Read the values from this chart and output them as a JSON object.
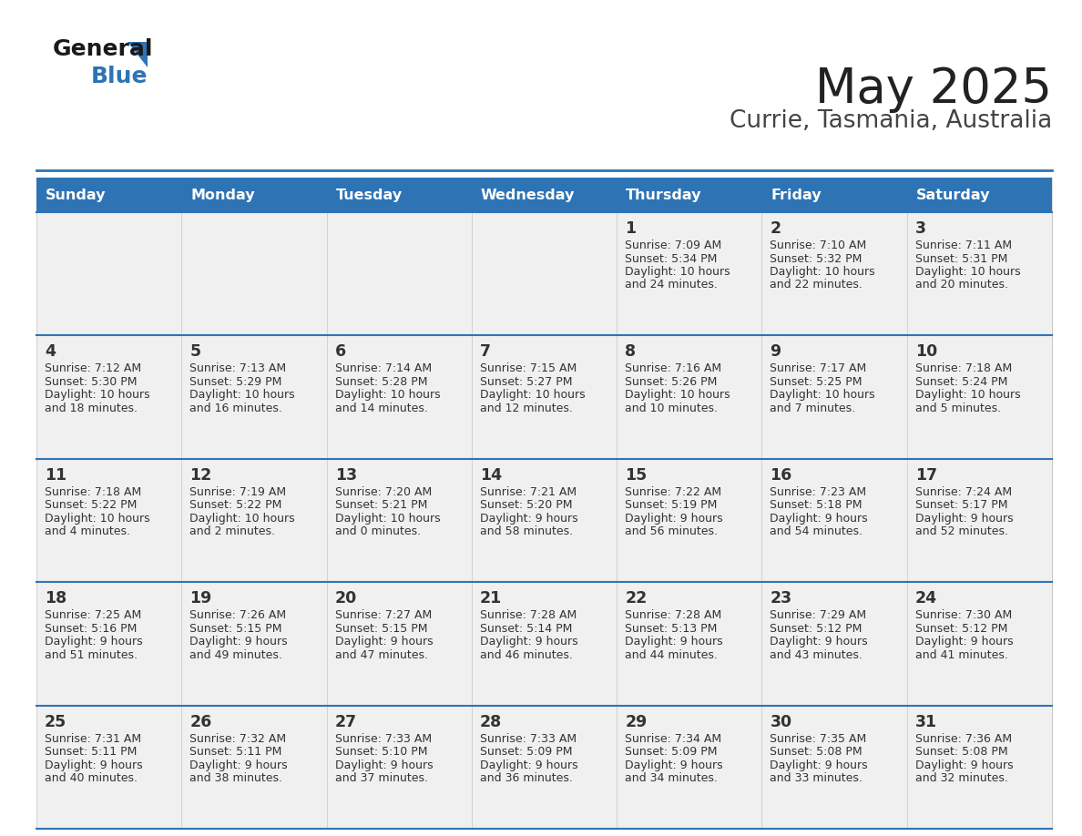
{
  "title": "May 2025",
  "subtitle": "Currie, Tasmania, Australia",
  "days_of_week": [
    "Sunday",
    "Monday",
    "Tuesday",
    "Wednesday",
    "Thursday",
    "Friday",
    "Saturday"
  ],
  "header_bg": "#2e74b5",
  "header_text": "#ffffff",
  "cell_bg_light": "#f0f0f0",
  "separator_color": "#2e74b5",
  "text_color": "#333333",
  "calendar_data": [
    [
      null,
      null,
      null,
      null,
      {
        "day": 1,
        "sunrise": "7:09 AM",
        "sunset": "5:34 PM",
        "daylight_h": "10 hours",
        "daylight_m": "and 24 minutes."
      },
      {
        "day": 2,
        "sunrise": "7:10 AM",
        "sunset": "5:32 PM",
        "daylight_h": "10 hours",
        "daylight_m": "and 22 minutes."
      },
      {
        "day": 3,
        "sunrise": "7:11 AM",
        "sunset": "5:31 PM",
        "daylight_h": "10 hours",
        "daylight_m": "and 20 minutes."
      }
    ],
    [
      {
        "day": 4,
        "sunrise": "7:12 AM",
        "sunset": "5:30 PM",
        "daylight_h": "10 hours",
        "daylight_m": "and 18 minutes."
      },
      {
        "day": 5,
        "sunrise": "7:13 AM",
        "sunset": "5:29 PM",
        "daylight_h": "10 hours",
        "daylight_m": "and 16 minutes."
      },
      {
        "day": 6,
        "sunrise": "7:14 AM",
        "sunset": "5:28 PM",
        "daylight_h": "10 hours",
        "daylight_m": "and 14 minutes."
      },
      {
        "day": 7,
        "sunrise": "7:15 AM",
        "sunset": "5:27 PM",
        "daylight_h": "10 hours",
        "daylight_m": "and 12 minutes."
      },
      {
        "day": 8,
        "sunrise": "7:16 AM",
        "sunset": "5:26 PM",
        "daylight_h": "10 hours",
        "daylight_m": "and 10 minutes."
      },
      {
        "day": 9,
        "sunrise": "7:17 AM",
        "sunset": "5:25 PM",
        "daylight_h": "10 hours",
        "daylight_m": "and 7 minutes."
      },
      {
        "day": 10,
        "sunrise": "7:18 AM",
        "sunset": "5:24 PM",
        "daylight_h": "10 hours",
        "daylight_m": "and 5 minutes."
      }
    ],
    [
      {
        "day": 11,
        "sunrise": "7:18 AM",
        "sunset": "5:22 PM",
        "daylight_h": "10 hours",
        "daylight_m": "and 4 minutes."
      },
      {
        "day": 12,
        "sunrise": "7:19 AM",
        "sunset": "5:22 PM",
        "daylight_h": "10 hours",
        "daylight_m": "and 2 minutes."
      },
      {
        "day": 13,
        "sunrise": "7:20 AM",
        "sunset": "5:21 PM",
        "daylight_h": "10 hours",
        "daylight_m": "and 0 minutes."
      },
      {
        "day": 14,
        "sunrise": "7:21 AM",
        "sunset": "5:20 PM",
        "daylight_h": "9 hours",
        "daylight_m": "and 58 minutes."
      },
      {
        "day": 15,
        "sunrise": "7:22 AM",
        "sunset": "5:19 PM",
        "daylight_h": "9 hours",
        "daylight_m": "and 56 minutes."
      },
      {
        "day": 16,
        "sunrise": "7:23 AM",
        "sunset": "5:18 PM",
        "daylight_h": "9 hours",
        "daylight_m": "and 54 minutes."
      },
      {
        "day": 17,
        "sunrise": "7:24 AM",
        "sunset": "5:17 PM",
        "daylight_h": "9 hours",
        "daylight_m": "and 52 minutes."
      }
    ],
    [
      {
        "day": 18,
        "sunrise": "7:25 AM",
        "sunset": "5:16 PM",
        "daylight_h": "9 hours",
        "daylight_m": "and 51 minutes."
      },
      {
        "day": 19,
        "sunrise": "7:26 AM",
        "sunset": "5:15 PM",
        "daylight_h": "9 hours",
        "daylight_m": "and 49 minutes."
      },
      {
        "day": 20,
        "sunrise": "7:27 AM",
        "sunset": "5:15 PM",
        "daylight_h": "9 hours",
        "daylight_m": "and 47 minutes."
      },
      {
        "day": 21,
        "sunrise": "7:28 AM",
        "sunset": "5:14 PM",
        "daylight_h": "9 hours",
        "daylight_m": "and 46 minutes."
      },
      {
        "day": 22,
        "sunrise": "7:28 AM",
        "sunset": "5:13 PM",
        "daylight_h": "9 hours",
        "daylight_m": "and 44 minutes."
      },
      {
        "day": 23,
        "sunrise": "7:29 AM",
        "sunset": "5:12 PM",
        "daylight_h": "9 hours",
        "daylight_m": "and 43 minutes."
      },
      {
        "day": 24,
        "sunrise": "7:30 AM",
        "sunset": "5:12 PM",
        "daylight_h": "9 hours",
        "daylight_m": "and 41 minutes."
      }
    ],
    [
      {
        "day": 25,
        "sunrise": "7:31 AM",
        "sunset": "5:11 PM",
        "daylight_h": "9 hours",
        "daylight_m": "and 40 minutes."
      },
      {
        "day": 26,
        "sunrise": "7:32 AM",
        "sunset": "5:11 PM",
        "daylight_h": "9 hours",
        "daylight_m": "and 38 minutes."
      },
      {
        "day": 27,
        "sunrise": "7:33 AM",
        "sunset": "5:10 PM",
        "daylight_h": "9 hours",
        "daylight_m": "and 37 minutes."
      },
      {
        "day": 28,
        "sunrise": "7:33 AM",
        "sunset": "5:09 PM",
        "daylight_h": "9 hours",
        "daylight_m": "and 36 minutes."
      },
      {
        "day": 29,
        "sunrise": "7:34 AM",
        "sunset": "5:09 PM",
        "daylight_h": "9 hours",
        "daylight_m": "and 34 minutes."
      },
      {
        "day": 30,
        "sunrise": "7:35 AM",
        "sunset": "5:08 PM",
        "daylight_h": "9 hours",
        "daylight_m": "and 33 minutes."
      },
      {
        "day": 31,
        "sunrise": "7:36 AM",
        "sunset": "5:08 PM",
        "daylight_h": "9 hours",
        "daylight_m": "and 32 minutes."
      }
    ]
  ]
}
